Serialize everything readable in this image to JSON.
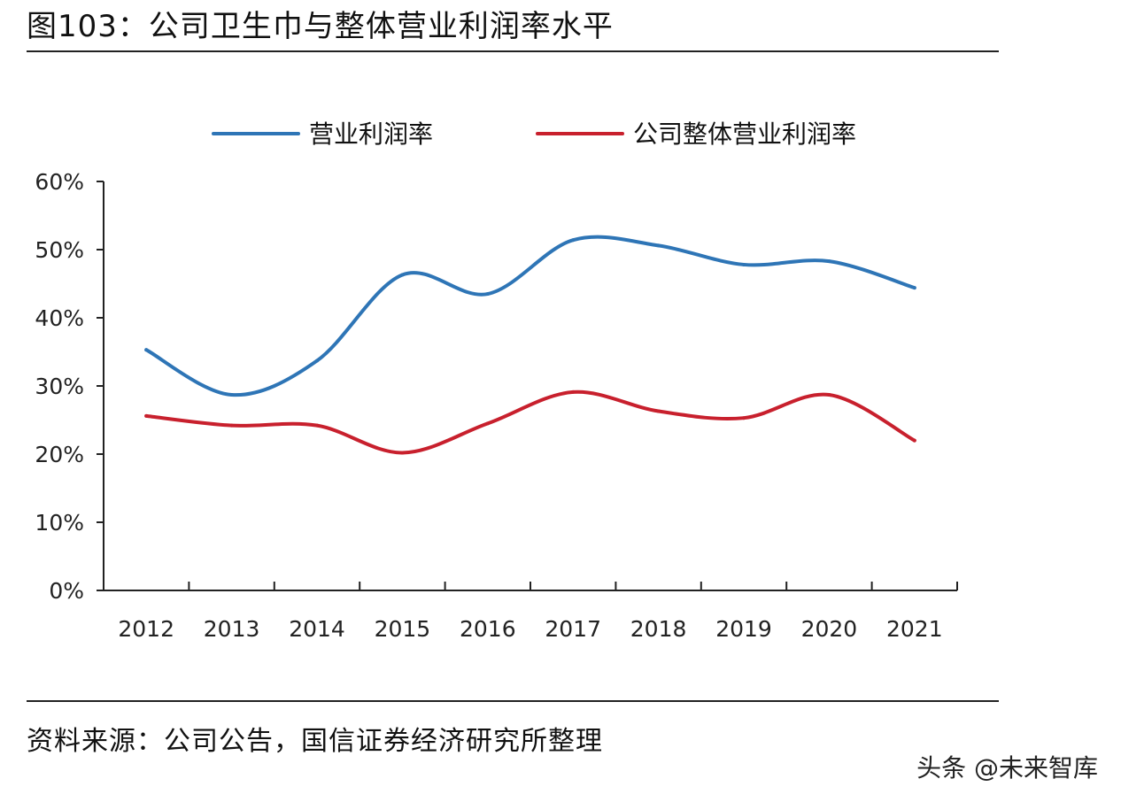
{
  "title": "图103：公司卫生巾与整体营业利润率水平",
  "source": "资料来源：公司公告，国信证券经济研究所整理",
  "watermark": "头条 @未来智库",
  "chart_data": {
    "type": "line",
    "categories": [
      "2012",
      "2013",
      "2014",
      "2015",
      "2016",
      "2017",
      "2018",
      "2019",
      "2020",
      "2021"
    ],
    "series": [
      {
        "name": "营业利润率",
        "color": "#2e75b6",
        "values": [
          35.3,
          28.7,
          33.7,
          46.3,
          43.5,
          51.4,
          50.6,
          47.8,
          48.3,
          44.4
        ]
      },
      {
        "name": "公司整体营业利润率",
        "color": "#c8202d",
        "values": [
          25.6,
          24.2,
          24.2,
          20.2,
          24.5,
          29.1,
          26.3,
          25.3,
          28.7,
          22.0
        ]
      }
    ],
    "ylim": [
      0,
      60
    ],
    "yticks": [
      "0%",
      "10%",
      "20%",
      "30%",
      "40%",
      "50%",
      "60%"
    ],
    "ytick_values": [
      0,
      10,
      20,
      30,
      40,
      50,
      60
    ],
    "legend_position": "top",
    "grid": false,
    "xlabel": "",
    "ylabel": ""
  }
}
